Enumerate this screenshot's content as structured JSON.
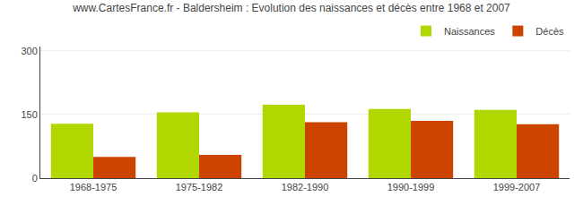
{
  "chart_data": {
    "type": "bar",
    "title": "www.CartesFrance.fr - Baldersheim : Evolution des naissances et décès entre 1968 et 2007",
    "categories": [
      "1968-1975",
      "1975-1982",
      "1982-1990",
      "1990-1999",
      "1999-2007"
    ],
    "series": [
      {
        "name": "Naissances",
        "color": "#b0d800",
        "values": [
          128,
          155,
          173,
          163,
          161
        ]
      },
      {
        "name": "Décès",
        "color": "#cc4400",
        "values": [
          50,
          55,
          132,
          135,
          127
        ]
      }
    ],
    "ylim": [
      0,
      310
    ],
    "yticks": [
      0,
      150,
      300
    ],
    "grid": true,
    "legend": "upper right"
  }
}
